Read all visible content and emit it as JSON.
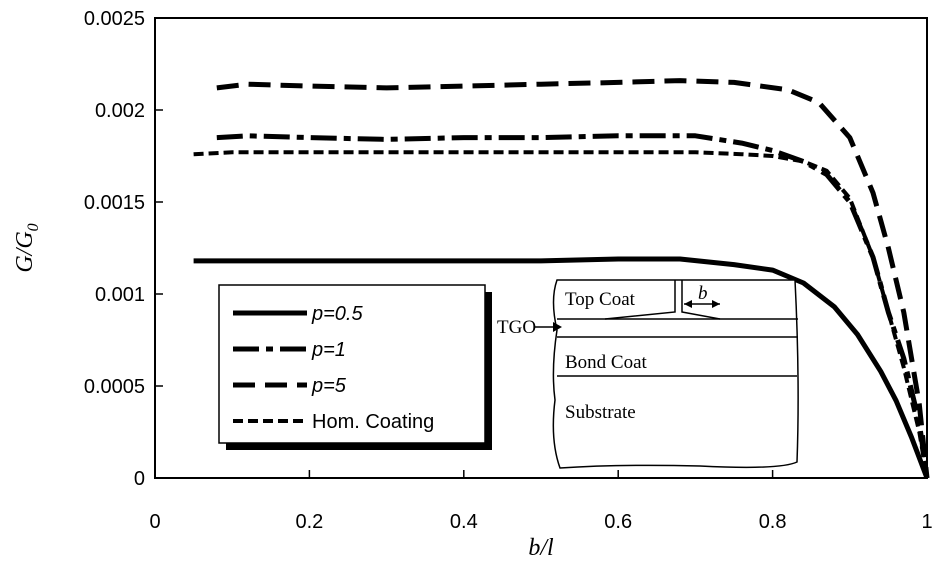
{
  "chart_data": {
    "type": "line",
    "xlabel": "b/l",
    "ylabel": "G/G",
    "ylabel_subscript": "0",
    "xlim": [
      0,
      1
    ],
    "ylim": [
      0,
      0.0025
    ],
    "x_ticks": [
      "0",
      "0.2",
      "0.4",
      "0.6",
      "0.8",
      "1"
    ],
    "y_ticks": [
      "0",
      "0.0005",
      "0.001",
      "0.0015",
      "0.002",
      "0.0025"
    ],
    "grid": false,
    "legend_position": "lower-left",
    "series": [
      {
        "name": "p=0.5",
        "style": "solid",
        "points": [
          [
            0.05,
            0.00118
          ],
          [
            0.1,
            0.00118
          ],
          [
            0.2,
            0.00118
          ],
          [
            0.3,
            0.00118
          ],
          [
            0.4,
            0.00118
          ],
          [
            0.5,
            0.00118
          ],
          [
            0.6,
            0.00119
          ],
          [
            0.68,
            0.00119
          ],
          [
            0.75,
            0.00116
          ],
          [
            0.8,
            0.00113
          ],
          [
            0.84,
            0.00106
          ],
          [
            0.88,
            0.00093
          ],
          [
            0.91,
            0.00078
          ],
          [
            0.94,
            0.00058
          ],
          [
            0.96,
            0.00042
          ],
          [
            0.98,
            0.00022
          ],
          [
            1.0,
            0.0
          ]
        ]
      },
      {
        "name": "p=1",
        "style": "dash-dot",
        "points": [
          [
            0.08,
            0.00185
          ],
          [
            0.12,
            0.00186
          ],
          [
            0.2,
            0.00185
          ],
          [
            0.3,
            0.00184
          ],
          [
            0.4,
            0.00185
          ],
          [
            0.5,
            0.00185
          ],
          [
            0.6,
            0.00186
          ],
          [
            0.7,
            0.00186
          ],
          [
            0.76,
            0.00182
          ],
          [
            0.8,
            0.00178
          ],
          [
            0.84,
            0.00172
          ],
          [
            0.87,
            0.00165
          ],
          [
            0.9,
            0.0015
          ],
          [
            0.93,
            0.0012
          ],
          [
            0.95,
            0.0009
          ],
          [
            0.97,
            0.00065
          ],
          [
            0.99,
            0.0003
          ],
          [
            1.0,
            0.0
          ]
        ]
      },
      {
        "name": "p=5",
        "style": "long-dash",
        "points": [
          [
            0.08,
            0.00212
          ],
          [
            0.12,
            0.00214
          ],
          [
            0.2,
            0.00213
          ],
          [
            0.3,
            0.00212
          ],
          [
            0.4,
            0.00213
          ],
          [
            0.5,
            0.00214
          ],
          [
            0.6,
            0.00215
          ],
          [
            0.68,
            0.00216
          ],
          [
            0.75,
            0.00215
          ],
          [
            0.82,
            0.00211
          ],
          [
            0.86,
            0.00204
          ],
          [
            0.9,
            0.00185
          ],
          [
            0.93,
            0.00155
          ],
          [
            0.95,
            0.00125
          ],
          [
            0.97,
            0.0009
          ],
          [
            0.99,
            0.0004
          ],
          [
            1.0,
            0.0
          ]
        ]
      },
      {
        "name": "Hom. Coating",
        "style": "short-dash",
        "points": [
          [
            0.05,
            0.00176
          ],
          [
            0.1,
            0.00177
          ],
          [
            0.2,
            0.00177
          ],
          [
            0.3,
            0.00177
          ],
          [
            0.4,
            0.00177
          ],
          [
            0.5,
            0.00177
          ],
          [
            0.6,
            0.00177
          ],
          [
            0.7,
            0.00177
          ],
          [
            0.76,
            0.00176
          ],
          [
            0.8,
            0.00175
          ],
          [
            0.84,
            0.00172
          ],
          [
            0.87,
            0.00167
          ],
          [
            0.9,
            0.00152
          ],
          [
            0.93,
            0.0012
          ],
          [
            0.95,
            0.0009
          ],
          [
            0.97,
            0.0006
          ],
          [
            0.99,
            0.00025
          ],
          [
            1.0,
            0.0
          ]
        ]
      }
    ],
    "inset": {
      "labels": [
        "Top Coat",
        "b",
        "TGO",
        "Bond Coat",
        "Substrate"
      ]
    }
  }
}
